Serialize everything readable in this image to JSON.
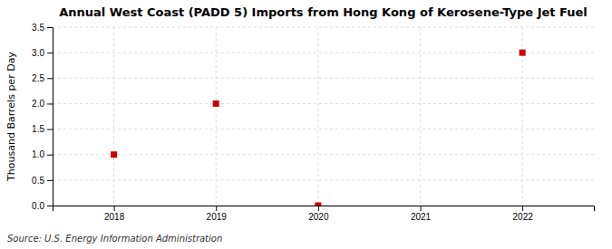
{
  "chart_data": {
    "type": "scatter",
    "title": "Annual West Coast (PADD 5) Imports from Hong Kong of Kerosene-Type Jet Fuel",
    "y_label": "Thousand Barrels per Day",
    "annotations": [
      "Source: U.S. Energy Information Administration"
    ],
    "x": [
      2018,
      2019,
      2020,
      2022
    ],
    "values": [
      1.0,
      2.0,
      0.0,
      3.0
    ],
    "color": "#cc0000",
    "marker": "square",
    "xlim": [
      2017.4,
      2022.7
    ],
    "ylim": [
      0.0,
      3.5
    ],
    "xticks": [
      2018,
      2019,
      2020,
      2021,
      2022
    ],
    "yticks": [
      {
        "value": 0.0,
        "label": "0.0"
      },
      0.5,
      {
        "value": 1.0,
        "label": "1.0"
      },
      1.5,
      {
        "value": 2.0,
        "label": "2.0"
      },
      2.5,
      {
        "value": 3.0,
        "label": "3.0"
      },
      3.5
    ],
    "grid": true
  }
}
